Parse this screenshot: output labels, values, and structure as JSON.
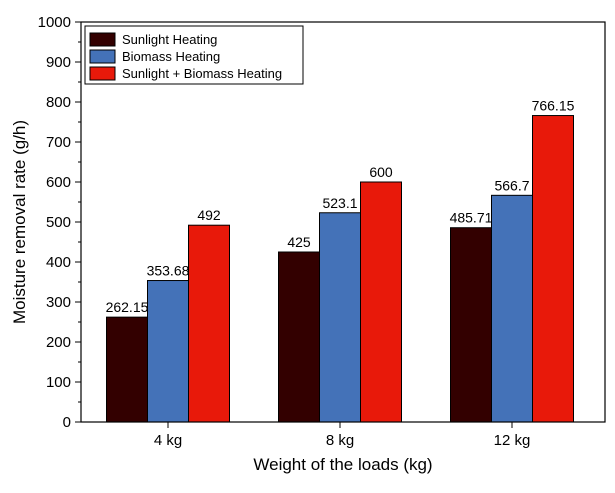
{
  "chart_data": {
    "type": "bar",
    "title": "",
    "xlabel": "Weight of the loads (kg)",
    "ylabel": "Moisture removal rate (g/h)",
    "categories": [
      "4 kg",
      "8 kg",
      "12 kg"
    ],
    "ylim": [
      0,
      1000
    ],
    "yticks": [
      0,
      100,
      200,
      300,
      400,
      500,
      600,
      700,
      800,
      900,
      1000
    ],
    "grid": false,
    "legend_position": "top-left",
    "series": [
      {
        "name": "Sunlight Heating",
        "color": "#330000",
        "values": [
          262.15,
          425,
          485.71
        ],
        "labels": [
          "262.15",
          "425",
          "485.71"
        ]
      },
      {
        "name": "Biomass Heating",
        "color": "#4472b8",
        "values": [
          353.68,
          523.1,
          566.7
        ],
        "labels": [
          "353.68",
          "523.1",
          "566.7"
        ]
      },
      {
        "name": "Sunlight + Biomass Heating",
        "color": "#e8190a",
        "values": [
          492,
          600,
          766.15
        ],
        "labels": [
          "492",
          "600",
          "766.15"
        ]
      }
    ]
  }
}
